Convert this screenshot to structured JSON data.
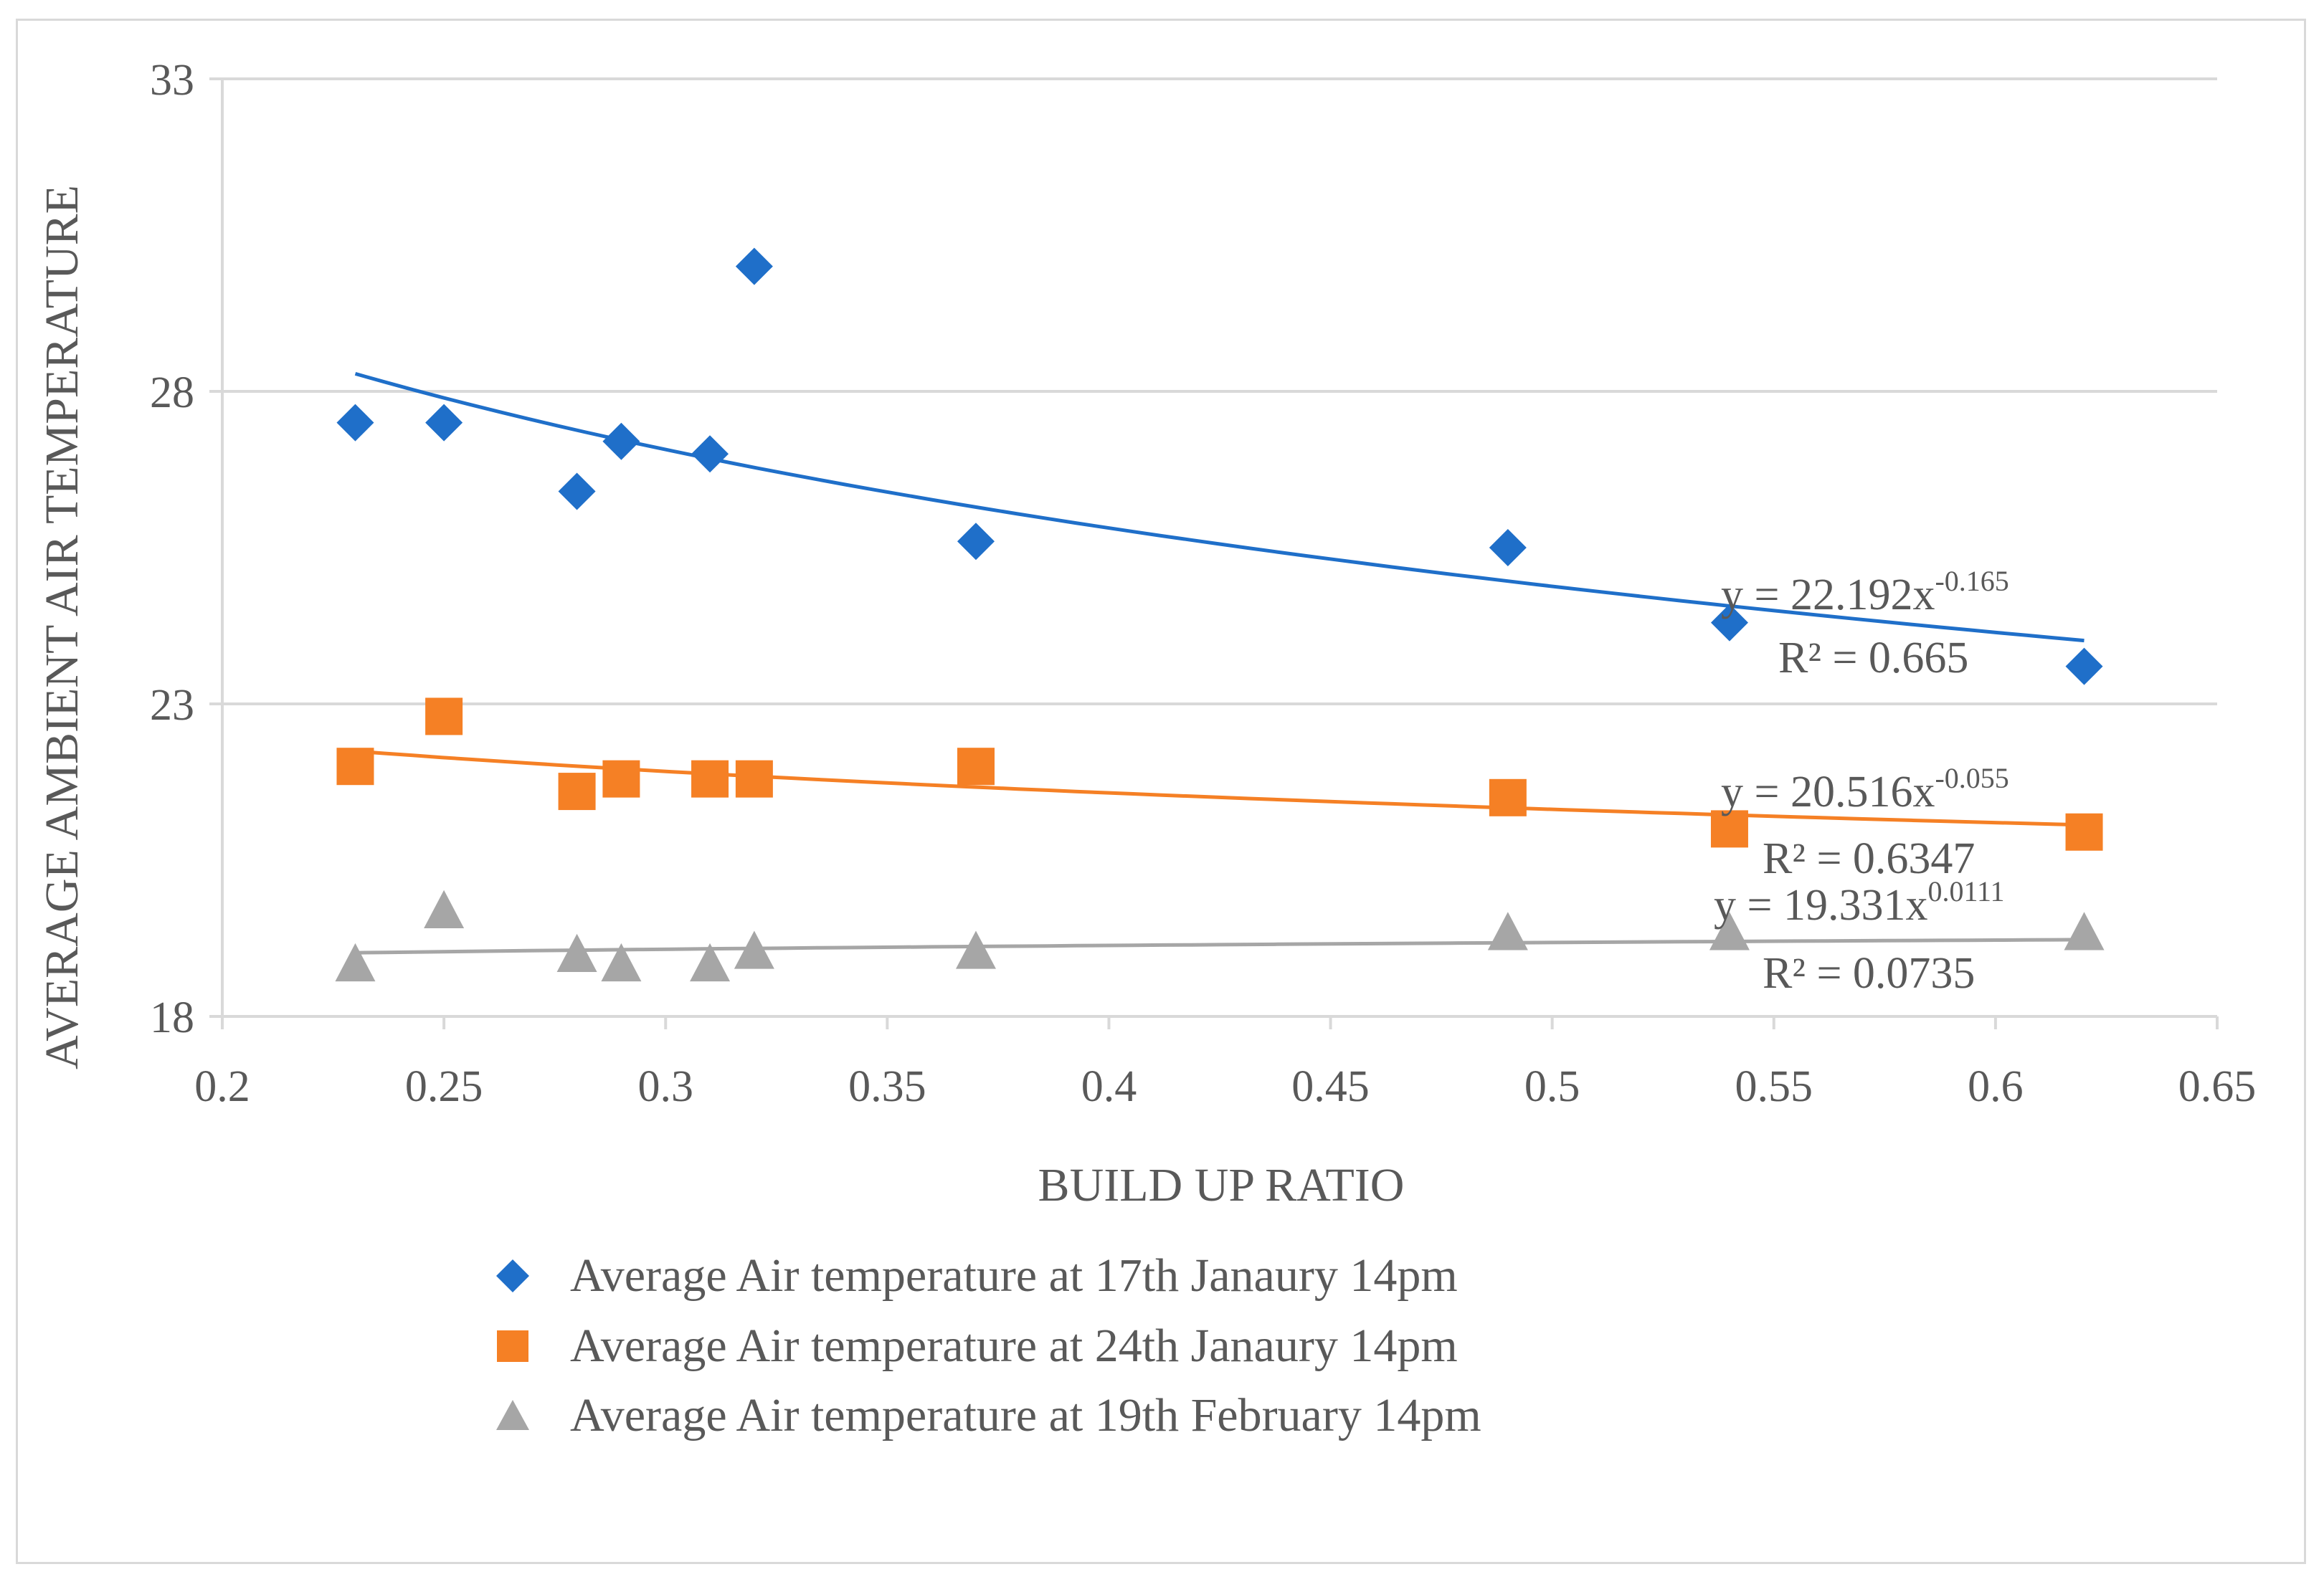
{
  "chart_data": {
    "type": "scatter",
    "title": "",
    "xlabel": "BUILD UP RATIO",
    "ylabel": "AVERAGE AMBIENT  AIR TEMPERATURE",
    "xlim": [
      0.2,
      0.65
    ],
    "ylim": [
      18,
      33
    ],
    "x_ticks": [
      "0.2",
      "0.25",
      "0.3",
      "0.35",
      "0.4",
      "0.45",
      "0.5",
      "0.55",
      "0.6",
      "0.65"
    ],
    "y_ticks": [
      "18",
      "23",
      "28",
      "33"
    ],
    "grid": "horizontal",
    "legend_position": "bottom",
    "series": [
      {
        "name": "Average Air temperature at 17th Janaury  14pm",
        "color": "#1f6fc9",
        "marker": "diamond",
        "points": [
          [
            0.23,
            27.5
          ],
          [
            0.25,
            27.5
          ],
          [
            0.28,
            26.4
          ],
          [
            0.29,
            27.2
          ],
          [
            0.31,
            27.0
          ],
          [
            0.32,
            30.0
          ],
          [
            0.37,
            25.6
          ],
          [
            0.49,
            25.5
          ],
          [
            0.54,
            24.3
          ],
          [
            0.62,
            23.6
          ]
        ],
        "trendline": {
          "type": "power",
          "a": 22.192,
          "b": -0.165
        },
        "equation_text": "y = 22.192x",
        "exponent_text": "-0.165",
        "r2_text": "R² = 0.665"
      },
      {
        "name": "Average Air temperature at 24th Janaury  14pm",
        "color": "#f58025",
        "marker": "square",
        "points": [
          [
            0.23,
            22.0
          ],
          [
            0.25,
            22.8
          ],
          [
            0.28,
            21.6
          ],
          [
            0.29,
            21.8
          ],
          [
            0.31,
            21.8
          ],
          [
            0.32,
            21.8
          ],
          [
            0.37,
            22.0
          ],
          [
            0.49,
            21.5
          ],
          [
            0.54,
            21.0
          ],
          [
            0.62,
            20.95
          ]
        ],
        "trendline": {
          "type": "power",
          "a": 20.516,
          "b": -0.055
        },
        "equation_text": "y = 20.516x",
        "exponent_text": "-0.055",
        "r2_text": "R² = 0.6347"
      },
      {
        "name": "Average Air temperature at 19th February 14pm",
        "color": "#a6a6a6",
        "marker": "triangle",
        "points": [
          [
            0.23,
            18.85
          ],
          [
            0.25,
            19.7
          ],
          [
            0.28,
            19.0
          ],
          [
            0.29,
            18.85
          ],
          [
            0.31,
            18.85
          ],
          [
            0.32,
            19.05
          ],
          [
            0.37,
            19.05
          ],
          [
            0.49,
            19.35
          ],
          [
            0.54,
            19.35
          ],
          [
            0.62,
            19.35
          ]
        ],
        "trendline": {
          "type": "power",
          "a": 19.331,
          "b": 0.0111
        },
        "equation_text": "y = 19.331x",
        "exponent_text": "0.0111",
        "r2_text": "R² = 0.0735"
      }
    ]
  }
}
